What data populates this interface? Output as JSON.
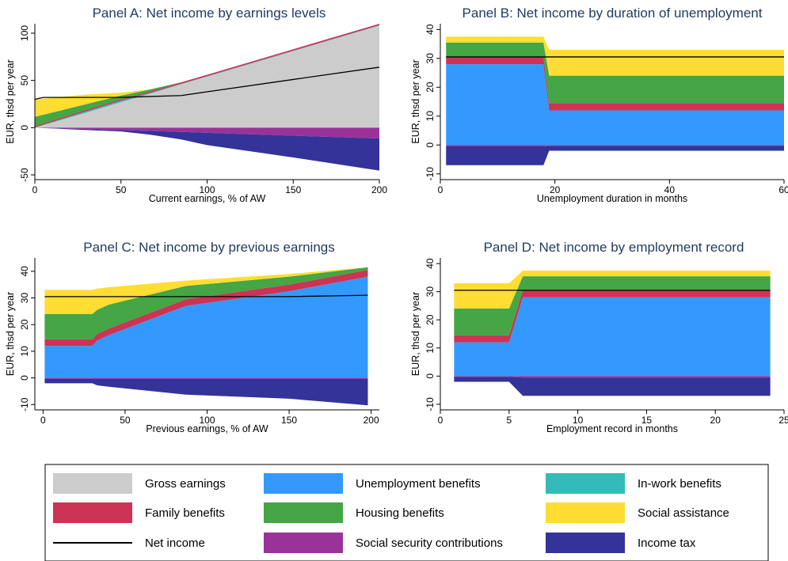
{
  "colors": {
    "gross": "#cccccc",
    "unemp": "#3399ff",
    "inwork": "#33bbbb",
    "family": "#cc3355",
    "housing": "#44a644",
    "social": "#ffdd33",
    "ssc": "#993399",
    "tax": "#333399",
    "net": "#000000",
    "title": "#1f3a5f"
  },
  "legend": [
    {
      "key": "gross",
      "label": "Gross earnings",
      "kind": "box"
    },
    {
      "key": "unemp",
      "label": "Unemployment benefits",
      "kind": "box"
    },
    {
      "key": "inwork",
      "label": "In-work benefits",
      "kind": "box"
    },
    {
      "key": "family",
      "label": "Family benefits",
      "kind": "box"
    },
    {
      "key": "housing",
      "label": "Housing benefits",
      "kind": "box"
    },
    {
      "key": "social",
      "label": "Social assistance",
      "kind": "box"
    },
    {
      "key": "net",
      "label": "Net income",
      "kind": "line"
    },
    {
      "key": "ssc",
      "label": "Social security contributions",
      "kind": "box"
    },
    {
      "key": "tax",
      "label": "Income tax",
      "kind": "box"
    }
  ],
  "chart_data": [
    {
      "type": "area",
      "title": "Panel A: Net income by earnings levels",
      "xlabel": "Current earnings, % of AW",
      "ylabel": "EUR, thsd per year",
      "xlim": [
        0,
        200
      ],
      "ylim": [
        -55,
        110
      ],
      "xticks": [
        0,
        50,
        100,
        150,
        200
      ],
      "yticks": [
        -50,
        0,
        50,
        100
      ],
      "x": [
        0,
        5,
        30,
        50,
        67,
        85,
        100,
        150,
        200
      ],
      "positive_stack": [
        {
          "key": "gross",
          "values": [
            0,
            2.7,
            16,
            27,
            36,
            46,
            54,
            81,
            108
          ]
        },
        {
          "key": "inwork",
          "values": [
            0,
            0.5,
            1.5,
            1.5,
            1,
            0.5,
            0.5,
            0.5,
            0.5
          ]
        },
        {
          "key": "family",
          "values": [
            1.5,
            1.5,
            1.5,
            1.5,
            1.5,
            1.5,
            1.5,
            1.5,
            1.5
          ]
        },
        {
          "key": "housing",
          "values": [
            10,
            9,
            6,
            4,
            2,
            0,
            0,
            0,
            0
          ]
        },
        {
          "key": "social",
          "values": [
            18,
            17,
            10,
            3,
            0,
            0,
            0,
            0,
            0
          ]
        }
      ],
      "negative_stack": [
        {
          "key": "ssc",
          "values": [
            0,
            -0.5,
            -1.5,
            -2.5,
            -3.5,
            -4.5,
            -5.5,
            -8.5,
            -11.5
          ]
        },
        {
          "key": "tax",
          "values": [
            0,
            0,
            -1,
            -1.5,
            -4,
            -8,
            -13,
            -23,
            -34
          ]
        }
      ],
      "net_income": [
        30,
        32,
        32,
        32,
        33,
        34,
        38,
        51,
        64
      ]
    },
    {
      "type": "area",
      "title": "Panel B: Net income by duration of unemployment",
      "xlabel": "Unemployment duration in months",
      "ylabel": "EUR, thsd per year",
      "xlim": [
        0,
        60
      ],
      "ylim": [
        -12,
        42
      ],
      "xticks": [
        0,
        20,
        40,
        60
      ],
      "yticks": [
        -10,
        0,
        10,
        20,
        30,
        40
      ],
      "x": [
        1,
        18,
        19,
        60
      ],
      "positive_stack": [
        {
          "key": "unemp",
          "values": [
            28,
            28,
            12,
            12
          ]
        },
        {
          "key": "family",
          "values": [
            2.5,
            2.5,
            2.5,
            2.5
          ]
        },
        {
          "key": "housing",
          "values": [
            5,
            5,
            9.5,
            9.5
          ]
        },
        {
          "key": "social",
          "values": [
            2,
            2,
            9,
            9
          ]
        }
      ],
      "negative_stack": [
        {
          "key": "ssc",
          "values": [
            -0.5,
            -0.5,
            -0.3,
            -0.3
          ]
        },
        {
          "key": "tax",
          "values": [
            -6.5,
            -6.5,
            -1.7,
            -1.7
          ]
        }
      ],
      "net_income": [
        30.5,
        30.5,
        30.5,
        30.5
      ]
    },
    {
      "type": "area",
      "title": "Panel C: Net income by previous earnings",
      "xlabel": "Previous earnings, % of AW",
      "ylabel": "EUR, thsd per year",
      "xlim": [
        -5,
        205
      ],
      "ylim": [
        -12,
        45
      ],
      "xticks": [
        0,
        50,
        100,
        150,
        200
      ],
      "yticks": [
        -10,
        0,
        10,
        20,
        30,
        40
      ],
      "x": [
        1,
        30,
        33,
        40,
        87,
        150,
        198
      ],
      "positive_stack": [
        {
          "key": "unemp",
          "values": [
            12,
            12,
            14,
            16,
            27,
            32.5,
            38
          ]
        },
        {
          "key": "family",
          "values": [
            2.5,
            2.5,
            2.5,
            2.5,
            2.5,
            2.5,
            2.5
          ]
        },
        {
          "key": "housing",
          "values": [
            9.5,
            9.5,
            9,
            9,
            5,
            3,
            1
          ]
        },
        {
          "key": "social",
          "values": [
            9,
            9,
            8,
            6.5,
            2,
            1,
            0
          ]
        }
      ],
      "negative_stack": [
        {
          "key": "ssc",
          "values": [
            -0.3,
            -0.3,
            -0.3,
            -0.3,
            -0.3,
            -0.3,
            -0.3
          ]
        },
        {
          "key": "tax",
          "values": [
            -1.7,
            -1.7,
            -2.5,
            -3,
            -6,
            -7.5,
            -10
          ]
        }
      ],
      "net_income": [
        30.5,
        30.5,
        30.5,
        30.5,
        30.5,
        30.5,
        31
      ]
    },
    {
      "type": "area",
      "title": "Panel D: Net income by employment record",
      "xlabel": "Employment record in months",
      "ylabel": "EUR, thsd per year",
      "xlim": [
        0,
        25
      ],
      "ylim": [
        -12,
        42
      ],
      "xticks": [
        0,
        5,
        10,
        15,
        20,
        25
      ],
      "yticks": [
        -10,
        0,
        10,
        20,
        30,
        40
      ],
      "x": [
        1,
        5,
        6,
        24
      ],
      "positive_stack": [
        {
          "key": "unemp",
          "values": [
            12,
            12,
            28,
            28
          ]
        },
        {
          "key": "family",
          "values": [
            2.5,
            2.5,
            2.5,
            2.5
          ]
        },
        {
          "key": "housing",
          "values": [
            9.5,
            9.5,
            5,
            5
          ]
        },
        {
          "key": "social",
          "values": [
            9,
            9,
            2,
            2
          ]
        }
      ],
      "negative_stack": [
        {
          "key": "ssc",
          "values": [
            -0.3,
            -0.3,
            -0.5,
            -0.5
          ]
        },
        {
          "key": "tax",
          "values": [
            -1.7,
            -1.7,
            -6.5,
            -6.5
          ]
        }
      ],
      "net_income": [
        30.5,
        30.5,
        30.5,
        30.5
      ]
    }
  ]
}
